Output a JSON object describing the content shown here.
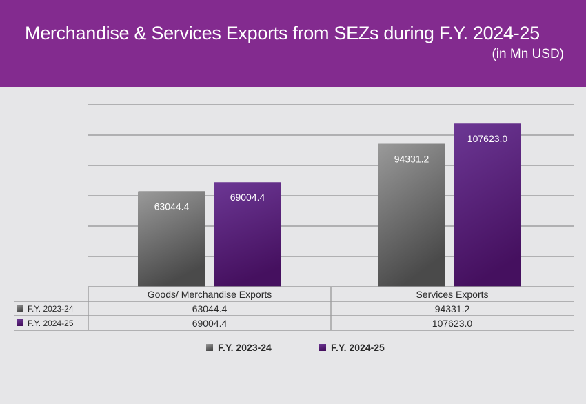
{
  "header": {
    "title": "Merchandise & Services Exports from SEZs during  F.Y. 2024-25",
    "subtitle": "(in Mn USD)",
    "background": "#832b8f"
  },
  "colors": {
    "series_2023_24_top": "#9a9a9a",
    "series_2023_24_bottom": "#4a4a4a",
    "series_2024_25_top": "#6c3794",
    "series_2024_25_bottom": "#45105f",
    "canvas": "#e6e6e8",
    "gridline": "#9d9d9f"
  },
  "chart_data": {
    "type": "bar",
    "title": "Merchandise & Services Exports from SEZs during  F.Y. 2024-25",
    "subtitle": "(in Mn USD)",
    "xlabel": "",
    "ylabel": "",
    "categories": [
      "Goods/ Merchandise Exports",
      "Services Exports"
    ],
    "series": [
      {
        "name": "F.Y. 2023-24",
        "values": [
          63044.4,
          94331.2
        ],
        "labels": [
          "63044.4",
          "94331.2"
        ]
      },
      {
        "name": "F.Y. 2024-25",
        "values": [
          69004.4,
          107623.0
        ],
        "labels": [
          "69004.4",
          "107623.0"
        ]
      }
    ],
    "ylim": [
      0,
      120000
    ],
    "ytick_step": 20000,
    "yticks_labeled": false,
    "grid": true,
    "legend": "bottom-center",
    "data_table": true
  }
}
